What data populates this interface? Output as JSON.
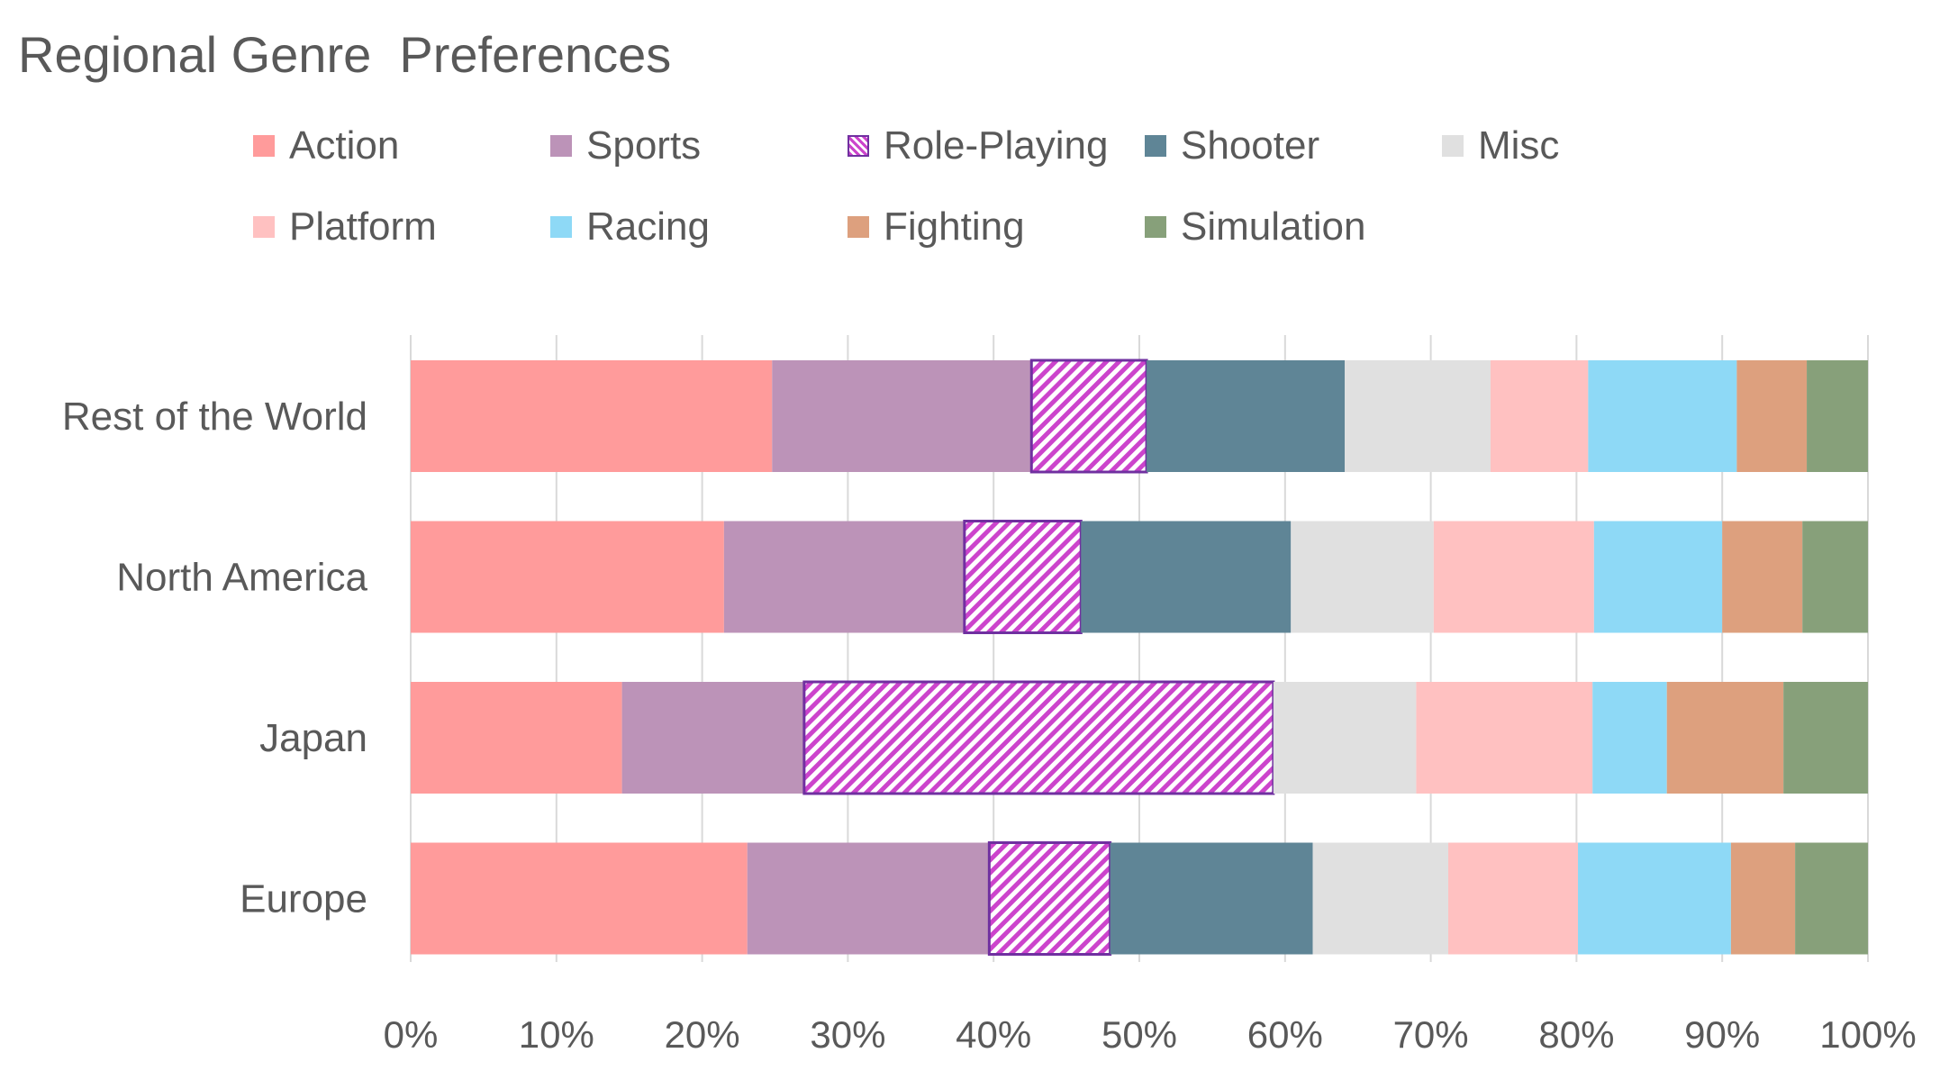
{
  "chart_data": {
    "type": "bar",
    "orientation": "horizontal",
    "stacked": "percent",
    "title": "Regional Genre  Preferences",
    "xlabel": "",
    "ylabel": "",
    "xlim": [
      0,
      100
    ],
    "grid": true,
    "legend_position": "top",
    "categories": [
      "Rest of the World",
      "North America",
      "Japan",
      "Europe"
    ],
    "x_ticks": [
      "0%",
      "10%",
      "20%",
      "30%",
      "40%",
      "50%",
      "60%",
      "70%",
      "80%",
      "90%",
      "100%"
    ],
    "series": [
      {
        "name": "Action",
        "color": "#FF9B9B",
        "pattern": false,
        "values": [
          24.8,
          21.5,
          14.5,
          23.1
        ]
      },
      {
        "name": "Sports",
        "color": "#BC93B8",
        "pattern": false,
        "values": [
          17.8,
          16.5,
          12.5,
          16.6
        ]
      },
      {
        "name": "Role-Playing",
        "color": "#CC44CC",
        "pattern": true,
        "border": "#7030A0",
        "values": [
          7.9,
          8.0,
          32.2,
          8.3
        ]
      },
      {
        "name": "Shooter",
        "color": "#5F8596",
        "pattern": false,
        "values": [
          13.6,
          14.4,
          0.0,
          13.9
        ]
      },
      {
        "name": "Misc",
        "color": "#E0E0E0",
        "pattern": false,
        "values": [
          10.0,
          9.8,
          9.8,
          9.3
        ]
      },
      {
        "name": "Platform",
        "color": "#FFC1C1",
        "pattern": false,
        "values": [
          6.7,
          11.0,
          12.1,
          8.9
        ]
      },
      {
        "name": "Racing",
        "color": "#8ED9F6",
        "pattern": false,
        "values": [
          10.2,
          8.8,
          5.1,
          10.5
        ]
      },
      {
        "name": "Fighting",
        "color": "#DDA07E",
        "pattern": false,
        "values": [
          4.8,
          5.5,
          8.0,
          4.4
        ]
      },
      {
        "name": "Simulation",
        "color": "#87A07A",
        "pattern": false,
        "values": [
          4.2,
          4.5,
          5.8,
          5.0
        ]
      }
    ]
  }
}
